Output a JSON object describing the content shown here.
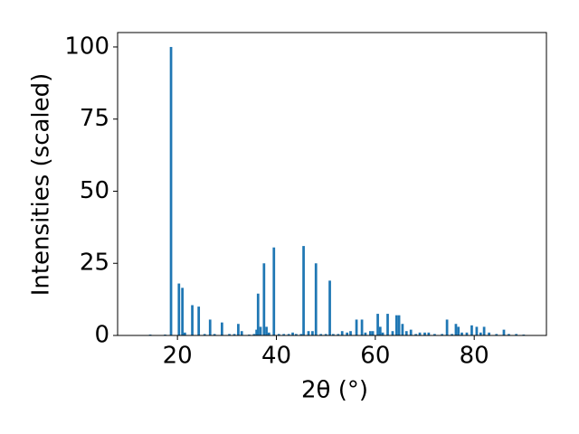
{
  "chart_data": {
    "type": "bar",
    "xlabel": "2θ (°)",
    "ylabel": "Intensities (scaled)",
    "color": "#1f77b4",
    "bar_width": 0.5,
    "x": [
      14.5,
      17.5,
      18.7,
      20.3,
      21.0,
      21.5,
      23.0,
      24.3,
      25.5,
      26.6,
      27.5,
      29.0,
      30.5,
      31.5,
      32.3,
      33.0,
      34.5,
      35.5,
      36.0,
      36.3,
      36.8,
      37.5,
      38.0,
      38.5,
      39.5,
      40.5,
      41.5,
      42.5,
      43.3,
      44.0,
      45.0,
      45.5,
      46.5,
      47.3,
      48.0,
      49.0,
      50.0,
      50.8,
      51.5,
      52.5,
      53.3,
      54.3,
      55.0,
      56.2,
      57.3,
      58.0,
      59.0,
      59.5,
      60.5,
      61.0,
      61.5,
      62.5,
      63.5,
      64.3,
      64.8,
      65.5,
      66.3,
      67.2,
      68.2,
      69.0,
      70.0,
      70.8,
      72.0,
      73.5,
      74.5,
      75.5,
      76.3,
      76.8,
      77.5,
      78.5,
      79.5,
      80.5,
      81.3,
      82.0,
      83.0,
      84.5,
      86.0,
      87.0,
      88.5,
      90.0
    ],
    "values": [
      0.3,
      0.3,
      100,
      18,
      16.5,
      1,
      10.5,
      10,
      0.5,
      5.5,
      0.5,
      4.5,
      0.5,
      0.5,
      4,
      1.5,
      0.3,
      0.5,
      2,
      14.5,
      3,
      25,
      3,
      1,
      30.5,
      0.5,
      0.5,
      0.5,
      1,
      0.5,
      0.5,
      31,
      1.5,
      1.5,
      25,
      0.5,
      0.5,
      19,
      0.5,
      0.5,
      1.5,
      1,
      1.5,
      5.5,
      5.5,
      1,
      1.5,
      1.5,
      7.5,
      3,
      1,
      7.5,
      1.5,
      7,
      7,
      4,
      1.5,
      2,
      0.5,
      1,
      1,
      1,
      0.5,
      0.5,
      5.5,
      0.5,
      4,
      3,
      1,
      1,
      3.5,
      3,
      1,
      3,
      1,
      0.5,
      2,
      0.5,
      0.5,
      0.3
    ],
    "xlim": [
      7.9,
      94.6
    ],
    "ylim": [
      0,
      105
    ],
    "xticks": [
      20,
      40,
      60,
      80
    ],
    "yticks": [
      0,
      25,
      50,
      75,
      100
    ]
  }
}
